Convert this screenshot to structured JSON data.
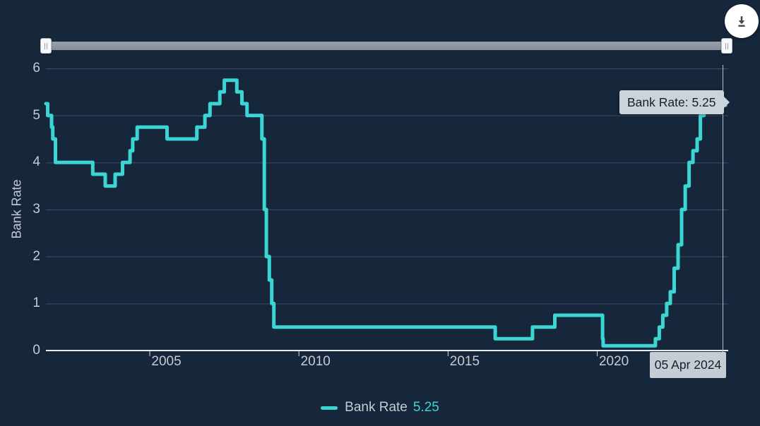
{
  "toolbar": {
    "download_tooltip": "Download"
  },
  "range_slider": {
    "state": "full-range"
  },
  "tooltip": {
    "text": "Bank Rate: 5.25",
    "date_label": "05 Apr 2024"
  },
  "legend": {
    "series_label": "Bank Rate",
    "value": "5.25"
  },
  "colors": {
    "background": "#16263B",
    "line": "#3BD6D4",
    "grid": "#3E4D63",
    "axis": "#E8EBEF",
    "label": "#C6CCD4",
    "tooltip_bg": "#CDD3DA",
    "crosshair": "#B9BFC8"
  },
  "chart_data": {
    "type": "line",
    "step": true,
    "title": "",
    "xlabel": "",
    "ylabel": "Bank Rate",
    "ylim": [
      0,
      6
    ],
    "xlim": [
      2001.53,
      2024.26
    ],
    "y_ticks": [
      0,
      1,
      2,
      3,
      4,
      5,
      6
    ],
    "x_ticks": [
      2005,
      2010,
      2015,
      2020
    ],
    "grid": "horizontal",
    "legend_position": "bottom",
    "series": [
      {
        "name": "Bank Rate",
        "current_value": 5.25,
        "color": "#3BD6D4",
        "points": [
          [
            2001.53,
            5.25
          ],
          [
            2001.59,
            5.0
          ],
          [
            2001.72,
            4.75
          ],
          [
            2001.76,
            4.5
          ],
          [
            2001.85,
            4.0
          ],
          [
            2003.1,
            3.75
          ],
          [
            2003.52,
            3.5
          ],
          [
            2003.85,
            3.75
          ],
          [
            2004.1,
            4.0
          ],
          [
            2004.35,
            4.25
          ],
          [
            2004.44,
            4.5
          ],
          [
            2004.59,
            4.75
          ],
          [
            2005.59,
            4.5
          ],
          [
            2006.59,
            4.75
          ],
          [
            2006.86,
            5.0
          ],
          [
            2007.03,
            5.25
          ],
          [
            2007.36,
            5.5
          ],
          [
            2007.51,
            5.75
          ],
          [
            2007.93,
            5.5
          ],
          [
            2008.1,
            5.25
          ],
          [
            2008.27,
            5.0
          ],
          [
            2008.77,
            4.5
          ],
          [
            2008.85,
            3.0
          ],
          [
            2008.92,
            2.0
          ],
          [
            2009.02,
            1.5
          ],
          [
            2009.1,
            1.0
          ],
          [
            2009.17,
            0.5
          ],
          [
            2016.59,
            0.25
          ],
          [
            2017.84,
            0.5
          ],
          [
            2018.59,
            0.75
          ],
          [
            2020.19,
            0.25
          ],
          [
            2020.21,
            0.1
          ],
          [
            2021.96,
            0.25
          ],
          [
            2022.09,
            0.5
          ],
          [
            2022.21,
            0.75
          ],
          [
            2022.34,
            1.0
          ],
          [
            2022.46,
            1.25
          ],
          [
            2022.59,
            1.75
          ],
          [
            2022.72,
            2.25
          ],
          [
            2022.84,
            3.0
          ],
          [
            2022.96,
            3.5
          ],
          [
            2023.09,
            4.0
          ],
          [
            2023.22,
            4.25
          ],
          [
            2023.36,
            4.5
          ],
          [
            2023.47,
            5.0
          ],
          [
            2023.59,
            5.25
          ],
          [
            2024.26,
            5.25
          ]
        ]
      }
    ],
    "annotations": {
      "hover_point": {
        "x": 2024.26,
        "y": 5.25,
        "tooltip": "Bank Rate: 5.25",
        "x_axis_label": "05 Apr 2024"
      }
    }
  }
}
